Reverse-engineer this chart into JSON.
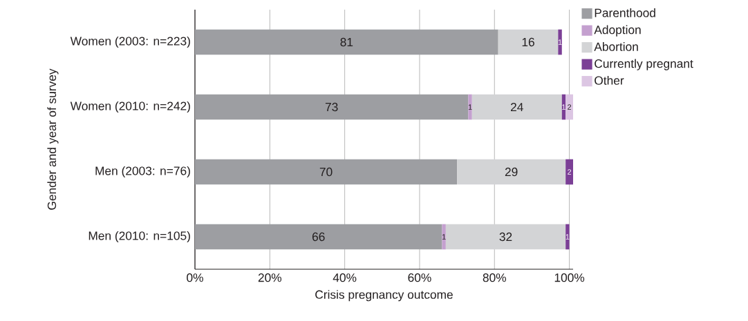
{
  "chart_data": {
    "type": "bar",
    "orientation": "horizontal",
    "stacked": true,
    "xlabel": "Crisis pregnancy outcome",
    "ylabel": "Gender and year of survey",
    "categories": [
      "Women (2003: n=223)",
      "Women (2010: n=242)",
      "Men (2003: n=76)",
      "Men (2010: n=105)"
    ],
    "series": [
      {
        "name": "Parenthood",
        "color": "#9d9ea2",
        "values": [
          81,
          73,
          70,
          66
        ]
      },
      {
        "name": "Adoption",
        "color": "#c4a0cf",
        "values": [
          null,
          1,
          null,
          1
        ]
      },
      {
        "name": "Abortion",
        "color": "#d3d4d6",
        "values": [
          16,
          24,
          29,
          32
        ]
      },
      {
        "name": "Currently pregnant",
        "color": "#7b3f96",
        "values": [
          1,
          1,
          2,
          1
        ]
      },
      {
        "name": "Other",
        "color": "#dcc6e3",
        "values": [
          null,
          2,
          null,
          null
        ]
      }
    ],
    "xlim": [
      0,
      101
    ],
    "xticks": [
      {
        "value": 0,
        "label": "0%"
      },
      {
        "value": 20,
        "label": "20%"
      },
      {
        "value": 40,
        "label": "40%"
      },
      {
        "value": 60,
        "label": "60%"
      },
      {
        "value": 80,
        "label": "80%"
      },
      {
        "value": 100,
        "label": "100%"
      }
    ],
    "grid": "x",
    "legend": "top right",
    "data_labels": true
  }
}
